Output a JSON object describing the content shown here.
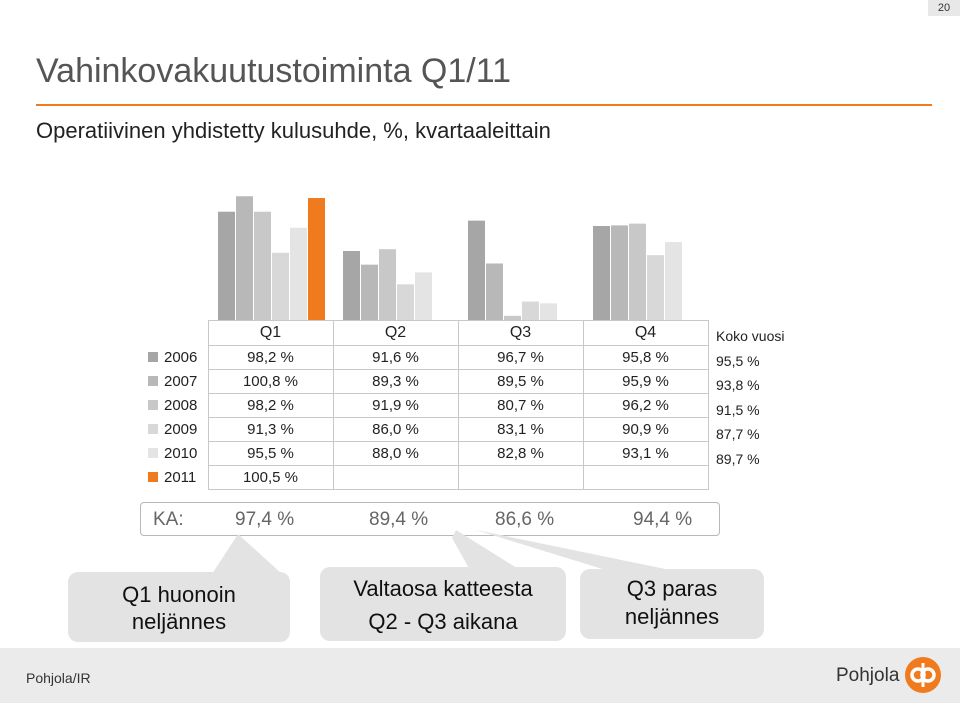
{
  "page_number": "20",
  "title": "Vahinkovakuutustoiminta Q1/11",
  "subtitle": "Operatiivinen yhdistetty kulusuhde, %, kvartaaleittain",
  "colors": {
    "accent": "#f07a1e",
    "2006": "#a6a6a6",
    "2007": "#b8b8b8",
    "2008": "#c8c8c8",
    "2009": "#d8d8d8",
    "2010": "#e4e4e4",
    "2011": "#f07a1e"
  },
  "chart_data": {
    "type": "bar",
    "categories": [
      "Q1",
      "Q2",
      "Q3",
      "Q4"
    ],
    "series": [
      {
        "name": "2006",
        "values": [
          98.2,
          91.6,
          96.7,
          95.8
        ],
        "labels": [
          "98,2 %",
          "91,6 %",
          "96,7 %",
          "95,8 %"
        ]
      },
      {
        "name": "2007",
        "values": [
          100.8,
          89.3,
          89.5,
          95.9
        ],
        "labels": [
          "100,8 %",
          "89,3 %",
          "89,5 %",
          "95,9 %"
        ]
      },
      {
        "name": "2008",
        "values": [
          98.2,
          91.9,
          80.7,
          96.2
        ],
        "labels": [
          "98,2 %",
          "91,9 %",
          "80,7 %",
          "96,2 %"
        ]
      },
      {
        "name": "2009",
        "values": [
          91.3,
          86.0,
          83.1,
          90.9
        ],
        "labels": [
          "91,3 %",
          "86,0 %",
          "83,1 %",
          "90,9 %"
        ]
      },
      {
        "name": "2010",
        "values": [
          95.5,
          88.0,
          82.8,
          93.1
        ],
        "labels": [
          "95,5 %",
          "88,0 %",
          "82,8 %",
          "93,1 %"
        ]
      },
      {
        "name": "2011",
        "values": [
          100.5,
          null,
          null,
          null
        ],
        "labels": [
          "100,5 %",
          "",
          "",
          ""
        ]
      }
    ],
    "annual": {
      "label": "Koko vuosi",
      "values": [
        "95,5 %",
        "93,8 %",
        "91,5 %",
        "87,7 %",
        "89,7 %"
      ]
    },
    "averages": {
      "label": "KA:",
      "values": [
        "97,4 %",
        "89,4 %",
        "86,6 %",
        "94,4 %"
      ]
    }
  },
  "callouts": [
    {
      "line1": "Q1 huonoin",
      "line2": "neljännes"
    },
    {
      "line1": "Valtaosa katteesta",
      "line2": "Q2 - Q3 aikana"
    },
    {
      "line1": "Q3 paras",
      "line2": "neljännes"
    }
  ],
  "footer": {
    "left": "Pohjola/IR",
    "brand": "Pohjola"
  }
}
